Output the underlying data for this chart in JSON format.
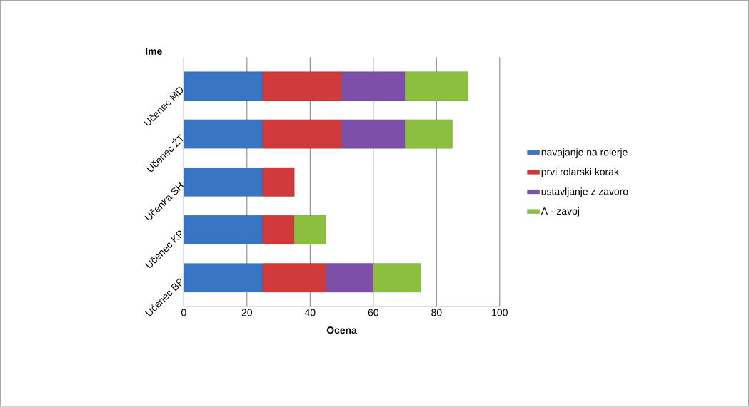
{
  "chart_data": {
    "type": "bar",
    "orientation": "horizontal",
    "stacked": true,
    "xlabel": "Ocena",
    "ylabel": "Ime",
    "categories": [
      "Učenec MD",
      "Učenec ŽT",
      "Učenka SH",
      "Učenec KP",
      "Učenec BP"
    ],
    "series": [
      {
        "name": "navajanje na rolerje",
        "color": "#3a75c4",
        "values": [
          25,
          25,
          25,
          25,
          25
        ]
      },
      {
        "name": "prvi rolarski korak",
        "color": "#d03a3a",
        "values": [
          25,
          25,
          10,
          10,
          20
        ]
      },
      {
        "name": "ustavljanje z zavoro",
        "color": "#7d4fa8",
        "values": [
          20,
          20,
          null,
          null,
          15
        ]
      },
      {
        "name": "A - zavoj",
        "color": "#8cbf3f",
        "values": [
          20,
          15,
          null,
          10,
          15
        ]
      }
    ],
    "xlim": [
      0,
      100
    ],
    "xticks": [
      0,
      20,
      40,
      60,
      80,
      100
    ],
    "grid": "x",
    "legend": "right"
  }
}
